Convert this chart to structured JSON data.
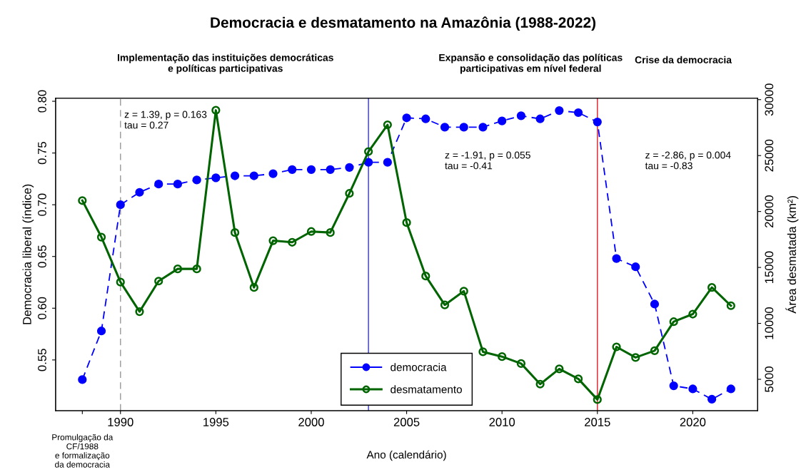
{
  "chart_data": {
    "type": "line",
    "title": "Democracia e desmatamento na Amazônia (1988-2022)",
    "xlabel": "Ano (calendário)",
    "ylabel": "Democracia liberal (índice)",
    "y2label": "Área desmatada (km²)",
    "x": [
      1988,
      1989,
      1990,
      1991,
      1992,
      1993,
      1994,
      1995,
      1996,
      1997,
      1998,
      1999,
      2000,
      2001,
      2002,
      2003,
      2004,
      2005,
      2006,
      2007,
      2008,
      2009,
      2010,
      2011,
      2012,
      2013,
      2014,
      2015,
      2016,
      2017,
      2018,
      2019,
      2020,
      2021,
      2022
    ],
    "series": [
      {
        "name": "democracia",
        "color": "#0000ff",
        "marker": "circle",
        "line_style": "dashed",
        "values": [
          0.531,
          0.578,
          0.7,
          0.712,
          0.72,
          0.72,
          0.724,
          0.726,
          0.728,
          0.728,
          0.73,
          0.734,
          0.734,
          0.734,
          0.736,
          0.741,
          0.741,
          0.784,
          0.783,
          0.775,
          0.775,
          0.775,
          0.781,
          0.786,
          0.783,
          0.791,
          0.789,
          0.78,
          0.648,
          0.64,
          0.604,
          0.525,
          0.522,
          0.512,
          0.522
        ]
      },
      {
        "name": "desmatamento",
        "color": "#006400",
        "axis": "y2",
        "marker": "circle",
        "line_style": "solid",
        "values": [
          20980,
          17710,
          13690,
          11050,
          13780,
          14870,
          14870,
          29050,
          18120,
          13210,
          17390,
          17250,
          18210,
          18120,
          21620,
          25360,
          27750,
          19010,
          14230,
          11650,
          12880,
          7460,
          7030,
          6410,
          4570,
          5930,
          5040,
          3190,
          7900,
          6950,
          7560,
          10150,
          10830,
          13210,
          11580
        ]
      }
    ],
    "xlim": [
      1986.6,
      2023.4
    ],
    "xticks": [
      {
        "value": 1988,
        "label": null
      },
      1990,
      1995,
      2000,
      2005,
      2010,
      2015,
      2020
    ],
    "ylim": [
      0.501,
      0.803
    ],
    "yticks": [
      {
        "value": 0.55,
        "label": "0.55"
      },
      {
        "value": 0.6,
        "label": "0.60"
      },
      {
        "value": 0.65,
        "label": "0.65"
      },
      {
        "value": 0.7,
        "label": "0.70"
      },
      {
        "value": 0.75,
        "label": "0.75"
      },
      {
        "value": 0.8,
        "label": "0.80"
      }
    ],
    "y2lim": [
      2200,
      30130
    ],
    "y2ticks": [
      5000,
      10000,
      15000,
      20000,
      25000,
      30000
    ],
    "ref_lines": [
      {
        "axis": "x",
        "value": 1990,
        "color": "#a0a0a0",
        "line_style": "dashed"
      },
      {
        "axis": "x",
        "value": 2003,
        "color": "#4040ff",
        "line_style": "solid"
      },
      {
        "axis": "x",
        "value": 2015,
        "color": "#e0303a",
        "line_style": "solid"
      }
    ],
    "annotations": [
      "Implementação das instituições democráticas\ne políticas participativas",
      "Expansão e consolidação das políticas\nparticipativas em nível federal",
      "Crise da democracia",
      "z = 1.39, p = 0.163\ntau = 0.27",
      "z = -1.91, p = 0.055\ntau = -0.41",
      "z = -2.86, p = 0.004\ntau = -0.83",
      "Promulgação da\nCF/1988\ne formalização\nda democracia"
    ],
    "grid": false,
    "legend": "bottom"
  }
}
